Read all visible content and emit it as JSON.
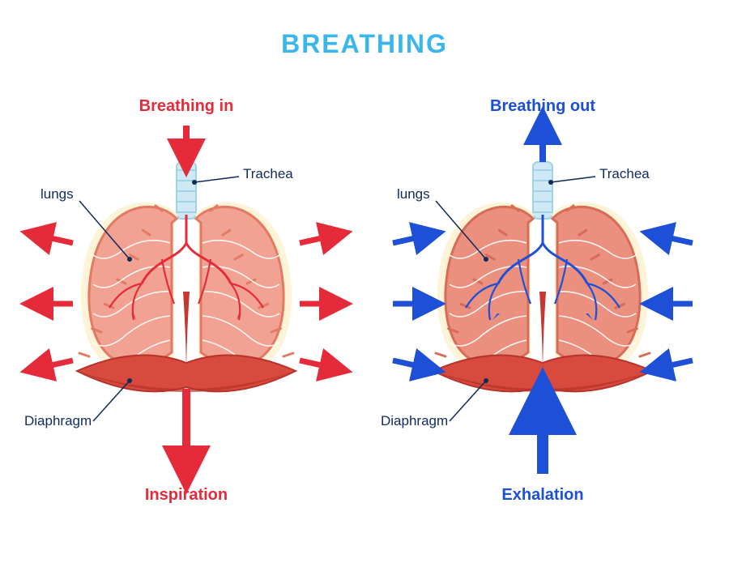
{
  "title": {
    "text": "BREATHING",
    "color": "#39b6ea",
    "fontsize": 32
  },
  "background_color": "#ffffff",
  "label_line_color": "#102a5c",
  "label_text_color": "#102a5c",
  "label_fontsize": 17,
  "panels": {
    "inspiration": {
      "subtitle": "Breathing in",
      "subtitle_color": "#e52b3a",
      "subtitle_fontsize": 20,
      "phase": "Inspiration",
      "phase_color": "#e52b3a",
      "phase_fontsize": 20,
      "arrow_color": "#e52b3a",
      "lung_fill": "#f2a293",
      "lung_stroke": "#e27a63",
      "lung_highlight": "#fdf2d2",
      "trachea_fill": "#cfe9f4",
      "trachea_stroke": "#9fd3e8",
      "bronchi_color": "#e52b3a",
      "vein_color": "#ffffff",
      "diaphragm_fill": "#d84a3d",
      "diaphragm_dark": "#b6322a",
      "center_vessel": "#c6372f",
      "labels": {
        "lungs": "lungs",
        "trachea": "Trachea",
        "diaphragm": "Diaphragm"
      },
      "arrows": {
        "direction": "outward",
        "main_vertical": "down"
      }
    },
    "exhalation": {
      "subtitle": "Breathing out",
      "subtitle_color": "#1d4fd7",
      "subtitle_fontsize": 20,
      "phase": "Exhalation",
      "phase_color": "#1d4fd7",
      "phase_fontsize": 20,
      "arrow_color": "#1d4fd7",
      "lung_fill": "#eb8f7e",
      "lung_stroke": "#d86b55",
      "lung_highlight": "#fdf2d2",
      "trachea_fill": "#cfe9f4",
      "trachea_stroke": "#9fd3e8",
      "bronchi_color": "#1d4fd7",
      "vein_color": "#ffffff",
      "diaphragm_fill": "#d84a3d",
      "diaphragm_dark": "#b6322a",
      "center_vessel": "#c6372f",
      "labels": {
        "lungs": "lungs",
        "trachea": "Trachea",
        "diaphragm": "Diaphragm"
      },
      "arrows": {
        "direction": "inward",
        "main_vertical": "up"
      }
    }
  }
}
